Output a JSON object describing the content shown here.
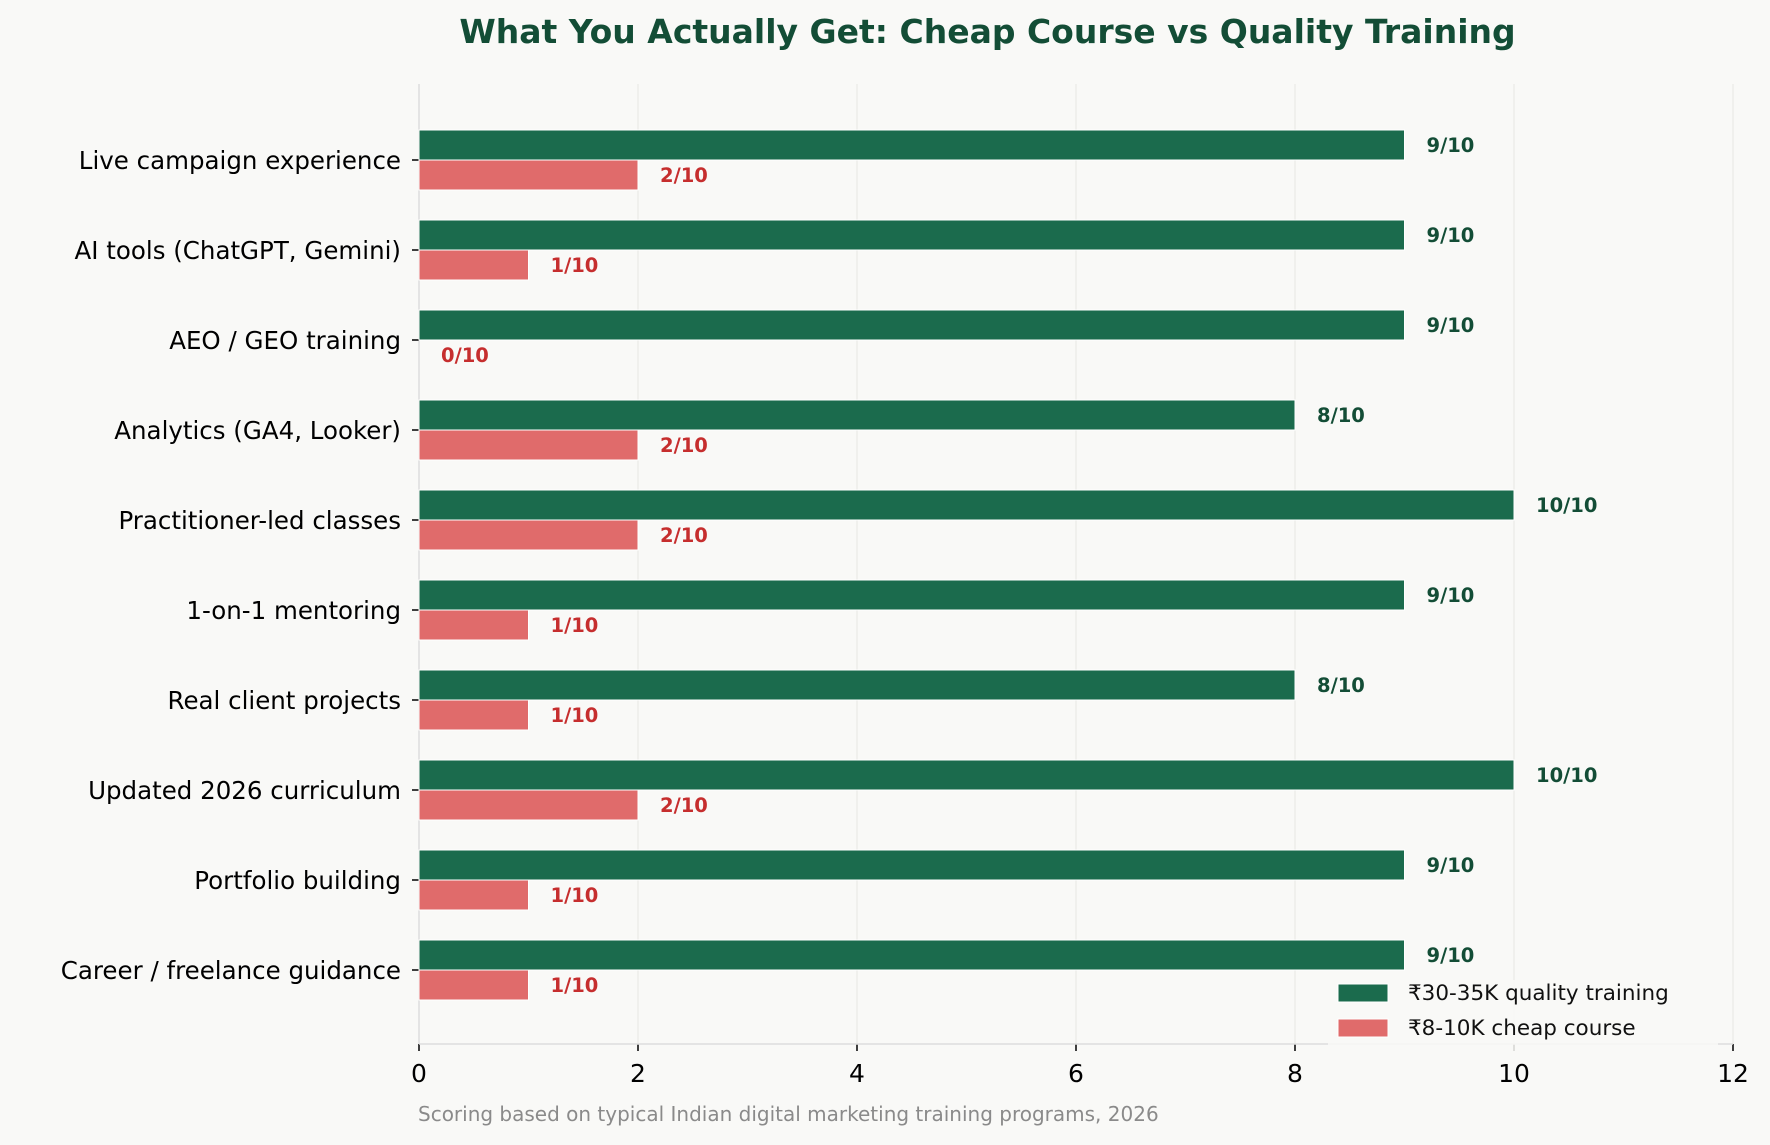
{
  "chart_data": {
    "type": "bar",
    "orientation": "horizontal",
    "title": "What You Actually Get: Cheap Course vs Quality Training",
    "categories": [
      "Live campaign experience",
      "AI tools (ChatGPT, Gemini)",
      "AEO / GEO training",
      "Analytics (GA4, Looker)",
      "Practitioner-led classes",
      "1-on-1 mentoring",
      "Real client projects",
      "Updated 2026 curriculum",
      "Portfolio building",
      "Career / freelance guidance"
    ],
    "series": [
      {
        "name": "₹30-35K quality training",
        "values": [
          9,
          9,
          9,
          8,
          10,
          9,
          8,
          10,
          9,
          9
        ],
        "labels": [
          "9/10",
          "9/10",
          "9/10",
          "8/10",
          "10/10",
          "9/10",
          "8/10",
          "10/10",
          "9/10",
          "9/10"
        ],
        "color": "#1b6b4d",
        "label_color": "#134d36"
      },
      {
        "name": "₹8-10K cheap course",
        "values": [
          2,
          1,
          0,
          2,
          2,
          1,
          1,
          2,
          1,
          1
        ],
        "labels": [
          "2/10",
          "1/10",
          "0/10",
          "2/10",
          "2/10",
          "1/10",
          "1/10",
          "2/10",
          "1/10",
          "1/10"
        ],
        "color": "#e06b6b",
        "label_color": "#c62e2e"
      }
    ],
    "xlim": [
      0,
      12
    ],
    "xticks": [
      "0",
      "2",
      "4",
      "6",
      "8",
      "10",
      "12"
    ],
    "grid": "vertical",
    "legend": "bottom-right",
    "footnote": "Scoring based on typical Indian digital marketing training programs, 2026"
  }
}
